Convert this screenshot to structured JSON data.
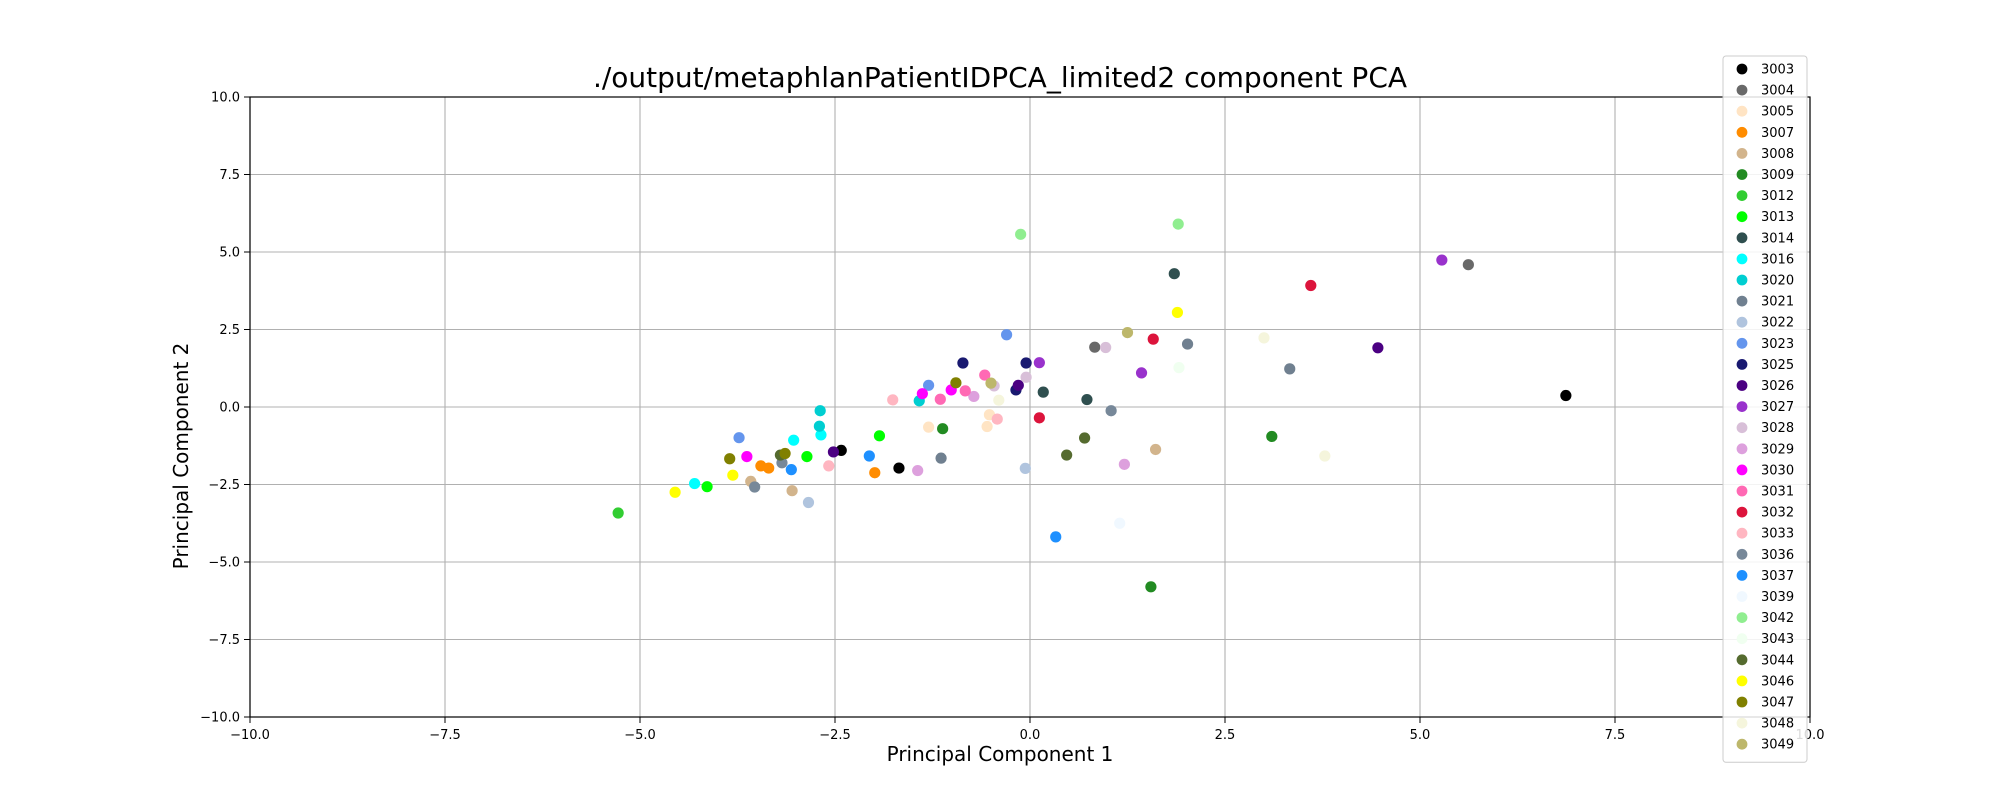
{
  "chart_data": {
    "type": "scatter",
    "title": "./output/metaphlanPatientIDPCA_limited2 component PCA",
    "xlabel": "Principal Component 1",
    "ylabel": "Principal Component 2",
    "xlim": [
      -10,
      10
    ],
    "ylim": [
      -10,
      10
    ],
    "xticks": [
      "−10.0",
      "−7.5",
      "−5.0",
      "−2.5",
      "0.0",
      "2.5",
      "5.0",
      "7.5",
      "10.0"
    ],
    "yticks": [
      "−10.0",
      "−7.5",
      "−5.0",
      "−2.5",
      "0.0",
      "2.5",
      "5.0",
      "7.5",
      "10.0"
    ],
    "grid": true,
    "legend_position": "right",
    "series": [
      {
        "name": "3003",
        "color": "#000000",
        "points": [
          [
            6.87,
            0.37
          ],
          [
            -1.68,
            -1.97
          ],
          [
            -2.42,
            -1.4
          ]
        ]
      },
      {
        "name": "3004",
        "color": "#696969",
        "points": [
          [
            5.62,
            4.59
          ],
          [
            0.83,
            1.93
          ]
        ]
      },
      {
        "name": "3005",
        "color": "#ffe4c4",
        "points": [
          [
            -1.3,
            -0.65
          ],
          [
            -0.52,
            -0.25
          ],
          [
            -0.55,
            -0.63
          ]
        ]
      },
      {
        "name": "3007",
        "color": "#ff8c00",
        "points": [
          [
            -1.99,
            -2.12
          ],
          [
            -3.35,
            -1.97
          ],
          [
            -3.45,
            -1.9
          ]
        ]
      },
      {
        "name": "3008",
        "color": "#d2b48c",
        "points": [
          [
            1.61,
            -1.37
          ],
          [
            -3.05,
            -2.7
          ],
          [
            -3.58,
            -2.4
          ]
        ]
      },
      {
        "name": "3009",
        "color": "#228b22",
        "points": [
          [
            1.55,
            -5.8
          ],
          [
            3.1,
            -0.95
          ],
          [
            -1.12,
            -0.7
          ]
        ]
      },
      {
        "name": "3012",
        "color": "#32cd32",
        "points": [
          [
            -5.28,
            -3.42
          ]
        ]
      },
      {
        "name": "3013",
        "color": "#00ff00",
        "points": [
          [
            -4.14,
            -2.57
          ],
          [
            -1.93,
            -0.93
          ],
          [
            -2.86,
            -1.6
          ]
        ]
      },
      {
        "name": "3014",
        "color": "#2f4f4f",
        "points": [
          [
            1.85,
            4.3
          ],
          [
            0.73,
            0.24
          ],
          [
            0.17,
            0.48
          ]
        ]
      },
      {
        "name": "3016",
        "color": "#00ffff",
        "points": [
          [
            -4.3,
            -2.47
          ],
          [
            -3.03,
            -1.07
          ],
          [
            -2.68,
            -0.9
          ]
        ]
      },
      {
        "name": "3020",
        "color": "#00ced1",
        "points": [
          [
            -2.69,
            -0.12
          ],
          [
            -1.42,
            0.2
          ],
          [
            -2.7,
            -0.62
          ]
        ]
      },
      {
        "name": "3021",
        "color": "#708090",
        "points": [
          [
            2.02,
            2.03
          ],
          [
            3.33,
            1.23
          ],
          [
            -1.14,
            -1.65
          ]
        ]
      },
      {
        "name": "3022",
        "color": "#b0c4de",
        "points": [
          [
            -2.84,
            -3.08
          ],
          [
            -0.06,
            -1.98
          ]
        ]
      },
      {
        "name": "3023",
        "color": "#6495ed",
        "points": [
          [
            -0.3,
            2.33
          ],
          [
            -3.73,
            -0.99
          ],
          [
            -1.3,
            0.7
          ]
        ]
      },
      {
        "name": "3025",
        "color": "#191970",
        "points": [
          [
            -0.86,
            1.42
          ],
          [
            -0.05,
            1.42
          ],
          [
            -0.18,
            0.55
          ]
        ]
      },
      {
        "name": "3026",
        "color": "#4b0082",
        "points": [
          [
            4.46,
            1.91
          ],
          [
            -2.52,
            -1.45
          ],
          [
            -0.15,
            0.7
          ]
        ]
      },
      {
        "name": "3027",
        "color": "#9932cc",
        "points": [
          [
            5.28,
            4.74
          ],
          [
            1.43,
            1.1
          ],
          [
            0.12,
            1.43
          ]
        ]
      },
      {
        "name": "3028",
        "color": "#d8bfd8",
        "points": [
          [
            0.97,
            1.92
          ],
          [
            -0.05,
            0.96
          ],
          [
            -0.46,
            0.68
          ]
        ]
      },
      {
        "name": "3029",
        "color": "#dda0dd",
        "points": [
          [
            1.21,
            -1.85
          ],
          [
            -1.44,
            -2.05
          ],
          [
            -0.72,
            0.34
          ]
        ]
      },
      {
        "name": "3030",
        "color": "#ff00ff",
        "points": [
          [
            -3.63,
            -1.6
          ],
          [
            -1.38,
            0.43
          ],
          [
            -1.01,
            0.55
          ]
        ]
      },
      {
        "name": "3031",
        "color": "#ff69b4",
        "points": [
          [
            -0.58,
            1.03
          ],
          [
            -1.15,
            0.25
          ],
          [
            -0.83,
            0.52
          ]
        ]
      },
      {
        "name": "3032",
        "color": "#dc143c",
        "points": [
          [
            3.6,
            3.92
          ],
          [
            1.58,
            2.19
          ],
          [
            0.12,
            -0.35
          ]
        ]
      },
      {
        "name": "3033",
        "color": "#ffb6c1",
        "points": [
          [
            -1.76,
            0.23
          ],
          [
            -2.58,
            -1.9
          ],
          [
            -0.42,
            -0.39
          ]
        ]
      },
      {
        "name": "3036",
        "color": "#778899",
        "points": [
          [
            1.04,
            -0.12
          ],
          [
            -3.53,
            -2.58
          ],
          [
            -3.18,
            -1.8
          ]
        ]
      },
      {
        "name": "3037",
        "color": "#1e90ff",
        "points": [
          [
            0.33,
            -4.19
          ],
          [
            -2.06,
            -1.58
          ],
          [
            -3.06,
            -2.02
          ]
        ]
      },
      {
        "name": "3039",
        "color": "#f0f8ff",
        "points": [
          [
            1.15,
            -3.75
          ]
        ]
      },
      {
        "name": "3042",
        "color": "#90ee90",
        "points": [
          [
            -0.12,
            5.57
          ],
          [
            1.9,
            5.9
          ]
        ]
      },
      {
        "name": "3043",
        "color": "#f0fff0",
        "points": [
          [
            1.91,
            1.27
          ]
        ]
      },
      {
        "name": "3044",
        "color": "#556b2f",
        "points": [
          [
            0.7,
            -1.0
          ],
          [
            0.47,
            -1.55
          ],
          [
            -3.2,
            -1.55
          ]
        ]
      },
      {
        "name": "3046",
        "color": "#ffff00",
        "points": [
          [
            1.89,
            3.05
          ],
          [
            -4.55,
            -2.75
          ],
          [
            -3.81,
            -2.2
          ]
        ]
      },
      {
        "name": "3047",
        "color": "#808000",
        "points": [
          [
            -3.85,
            -1.67
          ],
          [
            -3.14,
            -1.5
          ],
          [
            -0.95,
            0.78
          ]
        ]
      },
      {
        "name": "3048",
        "color": "#f5f5dc",
        "points": [
          [
            3.0,
            2.23
          ],
          [
            3.78,
            -1.58
          ],
          [
            -0.4,
            0.22
          ]
        ]
      },
      {
        "name": "3049",
        "color": "#bdb76b",
        "points": [
          [
            1.25,
            2.4
          ],
          [
            -0.5,
            0.77
          ]
        ]
      }
    ]
  }
}
